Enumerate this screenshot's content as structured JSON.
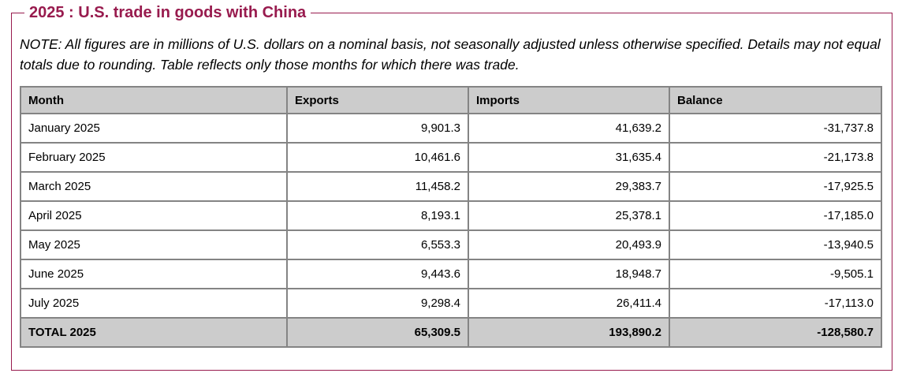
{
  "panel": {
    "title": "2025 : U.S. trade in goods with China",
    "note": "NOTE: All figures are in millions of U.S. dollars on a nominal basis, not seasonally adjusted unless otherwise specified. Details may not equal totals due to rounding. Table reflects only those months for which there was trade."
  },
  "colors": {
    "accent": "#981b4e",
    "header_bg": "#cccccc",
    "table_border": "#848484"
  },
  "chart_data": {
    "type": "table",
    "title": "2025 : U.S. trade in goods with China",
    "columns": [
      "Month",
      "Exports",
      "Imports",
      "Balance"
    ],
    "rows": [
      {
        "month": "January 2025",
        "exports": "9,901.3",
        "imports": "41,639.2",
        "balance": "-31,737.8"
      },
      {
        "month": "February 2025",
        "exports": "10,461.6",
        "imports": "31,635.4",
        "balance": "-21,173.8"
      },
      {
        "month": "March 2025",
        "exports": "11,458.2",
        "imports": "29,383.7",
        "balance": "-17,925.5"
      },
      {
        "month": "April 2025",
        "exports": "8,193.1",
        "imports": "25,378.1",
        "balance": "-17,185.0"
      },
      {
        "month": "May 2025",
        "exports": "6,553.3",
        "imports": "20,493.9",
        "balance": "-13,940.5"
      },
      {
        "month": "June 2025",
        "exports": "9,443.6",
        "imports": "18,948.7",
        "balance": "-9,505.1"
      },
      {
        "month": "July 2025",
        "exports": "9,298.4",
        "imports": "26,411.4",
        "balance": "-17,113.0"
      }
    ],
    "total_row": {
      "month": "TOTAL 2025",
      "exports": "65,309.5",
      "imports": "193,890.2",
      "balance": "-128,580.7"
    }
  }
}
